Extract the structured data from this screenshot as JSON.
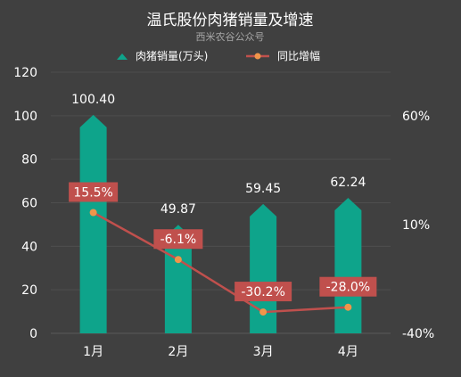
{
  "chart_data": {
    "type": "bar",
    "title": "温氏股份肉猪销量及增速",
    "subtitle": "西米农谷公众号",
    "categories": [
      "1月",
      "2月",
      "3月",
      "4月"
    ],
    "series": [
      {
        "name": "肉猪销量(万头)",
        "type": "bar",
        "axis": "left",
        "values": [
          100.4,
          49.87,
          59.45,
          62.24
        ],
        "labels": [
          "100.40",
          "49.87",
          "59.45",
          "62.24"
        ],
        "color": "#0ea48b"
      },
      {
        "name": "同比增幅",
        "type": "line",
        "axis": "right",
        "values": [
          15.5,
          -6.1,
          -30.2,
          -28.0
        ],
        "labels": [
          "15.5%",
          "-6.1%",
          "-30.2%",
          "-28.0%"
        ],
        "color": "#c0504d",
        "marker_color": "#f0954a"
      }
    ],
    "y_left": {
      "min": 0,
      "max": 120,
      "step": 20,
      "ticks": [
        "0",
        "20",
        "40",
        "60",
        "80",
        "100",
        "120"
      ]
    },
    "y_right": {
      "min": -40,
      "max": 80,
      "step": 50,
      "ticks": [
        "-40%",
        "10%",
        "60%"
      ]
    },
    "legend": "top-center",
    "grid": true,
    "colors": {
      "background": "#404040",
      "grid": "#4e4e4e",
      "label_box": "#c0504d",
      "axis_text": "#ffffff",
      "subtitle": "#a6a6a6"
    }
  }
}
